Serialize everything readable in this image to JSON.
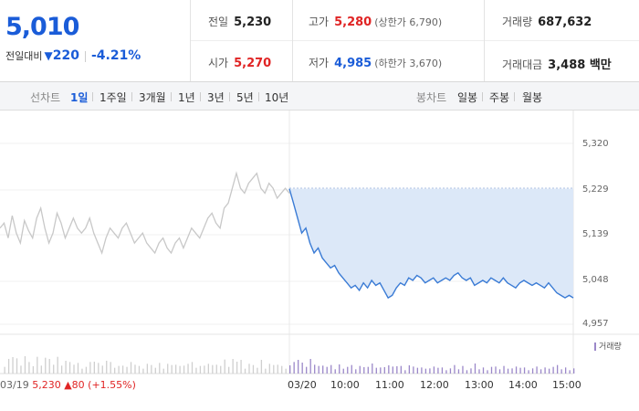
{
  "summary": {
    "current_price": "5,010",
    "change_label": "전일대비",
    "change_arrow": "▼",
    "change_value": "220",
    "change_pct": "-4.21%"
  },
  "stats": {
    "prev_close": {
      "label": "전일",
      "value": "5,230"
    },
    "open": {
      "label": "시가",
      "value": "5,270"
    },
    "high": {
      "label": "고가",
      "value": "5,280",
      "sub": "(상한가 6,790)"
    },
    "low": {
      "label": "저가",
      "value": "4,985",
      "sub": "(하한가 3,670)"
    },
    "volume": {
      "label": "거래량",
      "value": "687,632"
    },
    "amount": {
      "label": "거래대금",
      "value": "3,488 백만"
    }
  },
  "toolbar": {
    "line_label": "선차트",
    "line_periods": [
      "1일",
      "1주일",
      "3개월",
      "1년",
      "3년",
      "5년",
      "10년"
    ],
    "active_period": "1일",
    "candle_label": "봉차트",
    "candle_periods": [
      "일봉",
      "주봉",
      "월봉"
    ]
  },
  "chart": {
    "y_ticks": [
      "5,320",
      "5,229",
      "5,139",
      "5,048",
      "4,957"
    ],
    "x_ticks": [
      "03/20",
      "10:00",
      "11:00",
      "12:00",
      "13:00",
      "14:00",
      "15:00"
    ],
    "volume_legend": "거래량",
    "prev_day": {
      "date": "03/19",
      "price": "5,230",
      "arrow": "▲",
      "change": "80",
      "pct": "(+1.55%)"
    }
  },
  "colors": {
    "down": "#1a5cd8",
    "up": "#e02424",
    "line_today": "#3a7bd5",
    "fill_today": "#dce8f8",
    "line_prev": "#c8c8c8",
    "volume": "#9b88c9"
  },
  "chart_data": {
    "type": "line",
    "y_range": [
      4957,
      5320
    ],
    "reference_price": 5229,
    "series": [
      {
        "values_prev_day": [
          5150,
          5160,
          5130,
          5175,
          5140,
          5120,
          5165,
          5145,
          5130,
          5170,
          5190,
          5150,
          5120,
          5140,
          5180,
          5160,
          5130,
          5150,
          5170,
          5150,
          5140,
          5150,
          5170,
          5140,
          5120,
          5100,
          5130,
          5150,
          5140,
          5130,
          5150,
          5160,
          5140,
          5120,
          5130,
          5140,
          5120,
          5110,
          5100,
          5120,
          5130,
          5110,
          5100,
          5120,
          5130,
          5110,
          5130,
          5150,
          5140,
          5130,
          5150,
          5170,
          5180,
          5160,
          5150,
          5190,
          5200,
          5230,
          5260,
          5230,
          5220,
          5240,
          5250,
          5260,
          5230,
          5220,
          5240,
          5230,
          5210,
          5220,
          5230,
          5220
        ],
        "values_today": [
          5229,
          5200,
          5170,
          5140,
          5150,
          5120,
          5100,
          5110,
          5090,
          5080,
          5070,
          5075,
          5060,
          5050,
          5040,
          5030,
          5035,
          5025,
          5040,
          5030,
          5045,
          5035,
          5040,
          5025,
          5010,
          5015,
          5030,
          5040,
          5035,
          5050,
          5045,
          5055,
          5050,
          5040,
          5045,
          5050,
          5040,
          5045,
          5050,
          5045,
          5055,
          5060,
          5050,
          5045,
          5050,
          5035,
          5040,
          5045,
          5040,
          5050,
          5045,
          5040,
          5050,
          5040,
          5035,
          5030,
          5040,
          5045,
          5040,
          5035,
          5040,
          5035,
          5030,
          5040,
          5030,
          5020,
          5015,
          5010,
          5015,
          5010
        ]
      }
    ]
  }
}
